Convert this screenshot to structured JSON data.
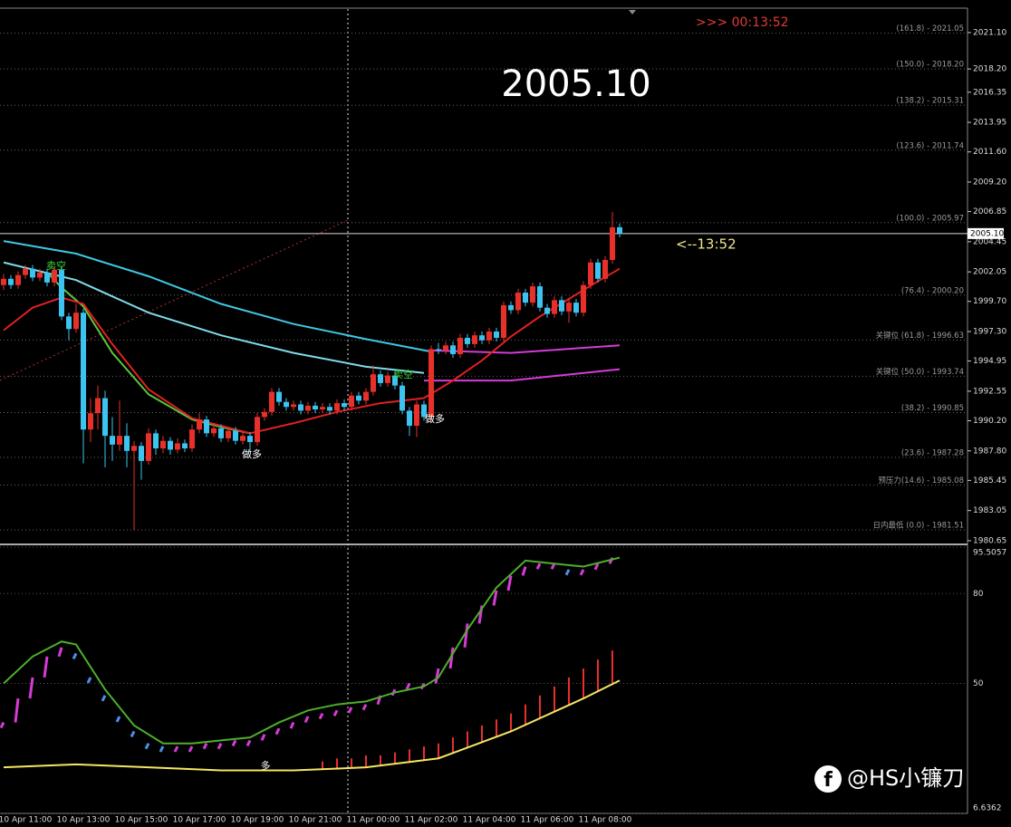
{
  "chart_data": {
    "type": "candlestick",
    "title": "2005.10",
    "countdown": ">>> 00:13:52",
    "timer_note": "<--13:52",
    "current_price": {
      "value": 2005.1,
      "label": "2005.10"
    },
    "ylim": [
      1980.43,
      2022.97
    ],
    "yticks": [
      {
        "value": 2021.1,
        "label": "2021.10"
      },
      {
        "value": 2018.2,
        "label": "2018.20"
      },
      2016.35,
      2013.95,
      {
        "value": 2011.6,
        "label": "2011.60"
      },
      {
        "value": 2009.2,
        "label": "2009.20"
      },
      2006.85,
      2004.45,
      2002.05,
      {
        "value": 1999.7,
        "label": "1999.70"
      },
      {
        "value": 1997.3,
        "label": "1997.30"
      },
      1994.95,
      1992.55,
      {
        "value": 1990.2,
        "label": "1990.20"
      },
      {
        "value": 1987.8,
        "label": "1987.80"
      },
      1985.45,
      1983.05,
      1980.65
    ],
    "fib_levels": [
      {
        "value": 2021.05,
        "label": "(161.8) - 2021.05"
      },
      {
        "value": 2018.2,
        "label": "(150.0) - 2018.20"
      },
      {
        "value": 2015.31,
        "label": "(138.2) - 2015.31"
      },
      {
        "value": 2011.74,
        "label": "(123.6) - 2011.74"
      },
      {
        "value": 2005.97,
        "label": "(100.0) - 2005.97"
      },
      {
        "value": 2000.2,
        "label": "(76.4) - 2000.20"
      },
      {
        "value": 1996.63,
        "label": "关键位 (61.8) - 1996.63"
      },
      {
        "value": 1993.74,
        "label": "关键位 (50.0) - 1993.74"
      },
      {
        "value": 1990.85,
        "label": "(38.2) - 1990.85"
      },
      {
        "value": 1987.28,
        "label": "(23.6) - 1987.28"
      },
      {
        "value": 1985.08,
        "label": "预压力(14.6) - 1985.08"
      },
      {
        "value": 1981.51,
        "label": "日内最低 (0.0) - 1981.51"
      }
    ],
    "bull_color": "#e8302a",
    "bear_color": "#3cc3ef",
    "candles": [
      [
        2001.0,
        2001.9,
        2000.6,
        2001.5
      ],
      [
        2001.5,
        2001.8,
        2000.7,
        2001.0
      ],
      [
        2001.0,
        2002.1,
        2000.7,
        2001.8
      ],
      [
        2001.8,
        2002.6,
        2001.5,
        2002.3
      ],
      [
        2002.3,
        2002.6,
        2001.3,
        2001.6
      ],
      [
        2001.6,
        2002.3,
        2001.3,
        2002.0
      ],
      [
        2002.0,
        2002.3,
        2000.9,
        2001.2
      ],
      [
        2001.2,
        2002.5,
        2000.9,
        2002.2
      ],
      [
        2002.2,
        2002.5,
        1998.2,
        1998.5
      ],
      [
        1998.5,
        1998.8,
        1996.6,
        1997.5
      ],
      [
        1997.5,
        1999.5,
        1997.2,
        1998.8
      ],
      [
        1998.8,
        1999.1,
        1986.8,
        1989.5
      ],
      [
        1989.5,
        1992.0,
        1988.5,
        1990.8
      ],
      [
        1990.8,
        1993.0,
        1989.5,
        1992.0
      ],
      [
        1992.0,
        1992.6,
        1986.5,
        1989.0
      ],
      [
        1989.0,
        1990.5,
        1987.0,
        1988.3
      ],
      [
        1988.3,
        1991.8,
        1987.8,
        1989.0
      ],
      [
        1989.0,
        1990.0,
        1986.5,
        1987.8
      ],
      [
        1987.8,
        1988.6,
        1981.5,
        1988.2
      ],
      [
        1988.2,
        1988.5,
        1985.5,
        1987.0
      ],
      [
        1987.0,
        1989.6,
        1986.7,
        1989.2
      ],
      [
        1989.2,
        1989.5,
        1987.5,
        1988.0
      ],
      [
        1988.0,
        1989.0,
        1987.6,
        1988.6
      ],
      [
        1988.6,
        1988.9,
        1987.5,
        1987.9
      ],
      [
        1987.9,
        1988.8,
        1987.6,
        1988.4
      ],
      [
        1988.4,
        1988.7,
        1987.7,
        1988.0
      ],
      [
        1988.0,
        1989.9,
        1987.7,
        1989.5
      ],
      [
        1989.5,
        1990.8,
        1989.2,
        1990.3
      ],
      [
        1990.3,
        1990.6,
        1988.9,
        1989.2
      ],
      [
        1989.2,
        1990.0,
        1988.9,
        1989.6
      ],
      [
        1989.6,
        1989.9,
        1988.5,
        1988.8
      ],
      [
        1988.8,
        1989.7,
        1988.5,
        1989.4
      ],
      [
        1989.4,
        1989.7,
        1988.3,
        1988.6
      ],
      [
        1988.6,
        1989.3,
        1988.3,
        1989.0
      ],
      [
        1989.0,
        1989.3,
        1987.7,
        1988.5
      ],
      [
        1988.5,
        1990.8,
        1988.2,
        1990.5
      ],
      [
        1990.5,
        1991.2,
        1990.2,
        1990.9
      ],
      [
        1990.9,
        1992.8,
        1990.6,
        1992.5
      ],
      [
        1992.5,
        1992.8,
        1991.4,
        1991.7
      ],
      [
        1991.7,
        1992.0,
        1991.0,
        1991.3
      ],
      [
        1991.3,
        1991.8,
        1991.0,
        1991.5
      ],
      [
        1991.5,
        1991.8,
        1990.7,
        1991.0
      ],
      [
        1991.0,
        1991.7,
        1990.7,
        1991.4
      ],
      [
        1991.4,
        1991.7,
        1990.8,
        1991.1
      ],
      [
        1991.1,
        1991.6,
        1990.8,
        1991.3
      ],
      [
        1991.3,
        1991.6,
        1990.7,
        1991.0
      ],
      [
        1991.0,
        1991.9,
        1990.7,
        1991.6
      ],
      [
        1991.6,
        1991.9,
        1991.0,
        1991.3
      ],
      [
        1991.3,
        1992.5,
        1991.0,
        1992.2
      ],
      [
        1992.2,
        1992.5,
        1991.5,
        1991.8
      ],
      [
        1991.8,
        1992.8,
        1991.5,
        1992.5
      ],
      [
        1992.5,
        1994.6,
        1992.2,
        1993.9
      ],
      [
        1993.9,
        1994.2,
        1992.9,
        1993.2
      ],
      [
        1993.2,
        1994.1,
        1992.9,
        1993.8
      ],
      [
        1993.8,
        1994.1,
        1992.7,
        1993.0
      ],
      [
        1993.0,
        1993.3,
        1990.7,
        1991.0
      ],
      [
        1991.0,
        1991.3,
        1989.0,
        1989.8
      ],
      [
        1989.8,
        1991.8,
        1988.9,
        1991.5
      ],
      [
        1991.5,
        1991.8,
        1990.2,
        1990.5
      ],
      [
        1990.5,
        1996.2,
        1990.2,
        1995.9
      ],
      [
        1995.9,
        1996.4,
        1995.5,
        1995.8
      ],
      [
        1995.8,
        1996.5,
        1995.5,
        1996.2
      ],
      [
        1996.2,
        1996.5,
        1995.2,
        1995.5
      ],
      [
        1995.5,
        1997.1,
        1995.2,
        1996.8
      ],
      [
        1996.8,
        1997.1,
        1996.0,
        1996.3
      ],
      [
        1996.3,
        1997.3,
        1996.0,
        1997.0
      ],
      [
        1997.0,
        1997.3,
        1996.3,
        1996.6
      ],
      [
        1996.6,
        1997.6,
        1996.3,
        1997.3
      ],
      [
        1997.3,
        1997.6,
        1996.5,
        1996.8
      ],
      [
        1996.8,
        1999.7,
        1996.5,
        1999.4
      ],
      [
        1999.4,
        1999.7,
        1998.7,
        1999.0
      ],
      [
        1999.0,
        2000.7,
        1998.7,
        2000.4
      ],
      [
        2000.4,
        2000.7,
        1999.3,
        1999.6
      ],
      [
        1999.6,
        2001.2,
        1999.3,
        2000.9
      ],
      [
        2000.9,
        2001.2,
        1998.9,
        1999.2
      ],
      [
        1999.2,
        1999.5,
        1998.4,
        1998.7
      ],
      [
        1998.7,
        2000.1,
        1998.4,
        1999.8
      ],
      [
        1999.8,
        2000.1,
        1998.6,
        1998.9
      ],
      [
        1998.9,
        1999.9,
        1998.0,
        1999.6
      ],
      [
        1999.6,
        1999.9,
        1998.5,
        1998.8
      ],
      [
        1998.8,
        2001.3,
        1998.5,
        2001.0
      ],
      [
        2001.0,
        2003.1,
        2000.7,
        2002.8
      ],
      [
        2002.8,
        2003.1,
        2001.2,
        2001.5
      ],
      [
        2001.5,
        2003.3,
        2001.2,
        2003.0
      ],
      [
        2003.0,
        2006.8,
        2002.7,
        2005.6
      ],
      [
        2005.6,
        2005.9,
        2004.8,
        2005.1
      ]
    ],
    "ma_lines": [
      {
        "color": "#3fc8e4",
        "x": [
          0,
          10,
          20,
          30,
          40,
          50,
          59
        ],
        "values": [
          2004.5,
          2003.5,
          2001.7,
          1999.5,
          1997.9,
          1996.7,
          1995.7
        ]
      },
      {
        "color": "#d63bd6",
        "x": [
          59,
          70,
          85
        ],
        "values": [
          1995.8,
          1995.6,
          1996.2
        ]
      },
      {
        "color": "#7fdcea",
        "x": [
          0,
          10,
          20,
          30,
          40,
          50,
          58
        ],
        "values": [
          2002.8,
          2001.4,
          1998.8,
          1997.0,
          1995.6,
          1994.5,
          1994.0
        ]
      },
      {
        "color": "#d63bd6",
        "x": [
          58,
          70,
          85
        ],
        "values": [
          1993.4,
          1993.4,
          1994.3
        ]
      },
      {
        "color": "#5ac83c",
        "x": [
          6,
          8,
          11,
          15,
          20,
          26,
          30,
          34
        ],
        "values": [
          2002.0,
          2000.8,
          1999.3,
          1995.6,
          1992.3,
          1990.3,
          1989.7,
          1989.2
        ]
      },
      {
        "color": "#e02020",
        "x": [
          0,
          4,
          8,
          11,
          15,
          20,
          26,
          34,
          40,
          46,
          52,
          58,
          62,
          66,
          70,
          74,
          78,
          82,
          85
        ],
        "values": [
          1997.4,
          1999.2,
          2000.0,
          1999.5,
          1996.3,
          1992.7,
          1990.4,
          1989.2,
          1990.0,
          1990.9,
          1991.6,
          1992.0,
          1993.4,
          1995.0,
          1996.9,
          1998.5,
          1999.9,
          2001.3,
          2002.3
        ]
      }
    ],
    "x_labels": [
      "10 Apr 11:00",
      "10 Apr 13:00",
      "10 Apr 15:00",
      "10 Apr 17:00",
      "10 Apr 19:00",
      "10 Apr 21:00",
      "11 Apr 00:00",
      "11 Apr 02:00",
      "11 Apr 04:00",
      "11 Apr 06:00",
      "11 Apr 08:00"
    ],
    "annotations": [
      "卖空",
      "做多",
      "卖空",
      "做多",
      "多"
    ],
    "watermark": "@HS小镰刀",
    "indicator": {
      "ylim": [
        6.6362,
        95.5057
      ],
      "yticks": [
        6.6362,
        50,
        80,
        95.5057
      ],
      "rise_color": "#d63bd6",
      "fall_color": "#4a90e8",
      "histogram": {
        "x": [
          0,
          2,
          4,
          6,
          8,
          10,
          12,
          14,
          16,
          18,
          20,
          22,
          24,
          26,
          28,
          30,
          32,
          34,
          36,
          38,
          40,
          42,
          44,
          46,
          48,
          50,
          52,
          54,
          56,
          58,
          60,
          62,
          64,
          66,
          68,
          70,
          72,
          74,
          76,
          78,
          80,
          82,
          84
        ],
        "values": [
          37,
          45,
          52,
          59,
          62,
          60,
          52,
          46,
          39,
          34,
          30,
          29,
          29,
          29,
          30,
          30,
          31,
          31,
          33,
          35,
          37,
          39,
          40,
          41,
          42,
          43,
          46,
          48,
          50,
          50,
          55,
          62,
          70,
          76,
          81,
          86,
          89,
          90,
          90,
          88,
          88,
          90,
          92
        ]
      },
      "signal_line": {
        "color": "#4caf2a",
        "x": [
          0,
          4,
          8,
          10,
          14,
          18,
          22,
          26,
          30,
          34,
          38,
          42,
          46,
          50,
          54,
          58,
          60,
          64,
          68,
          72,
          76,
          80,
          85
        ],
        "values": [
          50,
          59,
          64,
          63,
          48,
          36,
          30,
          30,
          31,
          32,
          37,
          41,
          43,
          44,
          47,
          49,
          52,
          68,
          82,
          91,
          90,
          89,
          92
        ]
      },
      "slow_line": {
        "color": "#f5e663",
        "x": [
          0,
          10,
          20,
          30,
          40,
          50,
          60,
          70,
          80,
          85
        ],
        "values": [
          22,
          23,
          22,
          21,
          21,
          22,
          25,
          34,
          45,
          51
        ]
      },
      "slow_histogram": {
        "color": "#e8302a",
        "x": [
          44,
          46,
          48,
          50,
          52,
          54,
          56,
          58,
          60,
          62,
          64,
          66,
          68,
          70,
          72,
          74,
          76,
          78,
          80,
          82,
          84
        ],
        "values": [
          24,
          25,
          25,
          26,
          26,
          27,
          28,
          29,
          30,
          32,
          34,
          36,
          38,
          40,
          43,
          46,
          49,
          52,
          55,
          58,
          61
        ]
      }
    }
  }
}
